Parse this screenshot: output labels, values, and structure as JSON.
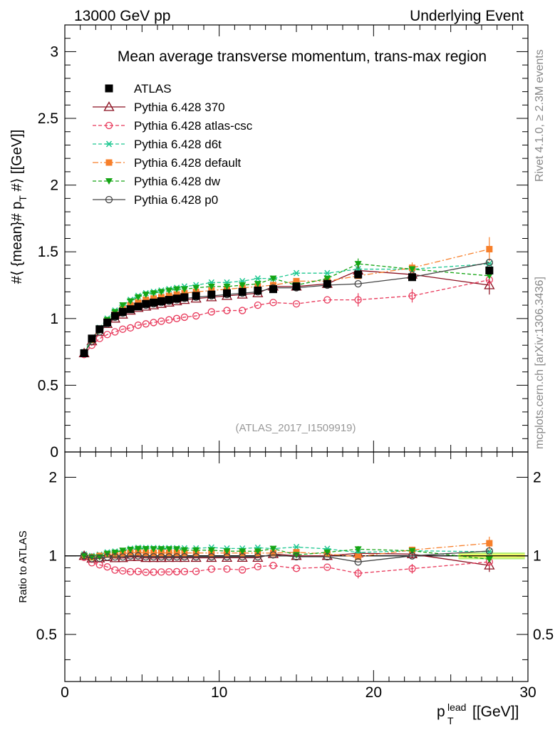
{
  "header": {
    "left": "13000 GeV pp",
    "right": "Underlying Event",
    "side_top": "Rivet 4.1.0, ≥ 2.3M events",
    "side_bottom": "mcplots.cern.ch [arXiv:1306.3436]",
    "analysis_id": "(ATLAS_2017_I1509919)"
  },
  "colors": {
    "ATLAS": "#000000",
    "p370": "#8b1020",
    "atlascsc": "#e8385a",
    "d6t": "#1ec891",
    "default": "#f77f2a",
    "dw": "#14a514",
    "p0": "#444444",
    "band_inner": "#ffff66",
    "band_outer": "#b8f07a"
  },
  "chart_data": [
    {
      "type": "line",
      "panel": "main",
      "title": "Mean average transverse momentum, trans-max region",
      "xlabel": "p_T^lead [[GeV]]",
      "ylabel": "#langle {mean}# p_T #rangle [[GeV]]",
      "ylabel_parts": {
        "pre": "#",
        "mid": "{mean}# p",
        "sub": "T",
        "post": "#",
        "tail": "[[GeV]]"
      },
      "xlim": [
        0,
        30
      ],
      "ylim": [
        0,
        3.2
      ],
      "yticks": [
        0,
        0.5,
        1,
        1.5,
        2,
        2.5,
        3
      ],
      "ytick_labels": [
        "0",
        "0.5",
        "1",
        "1.5",
        "2",
        "2.5",
        "3"
      ],
      "x": [
        1.25,
        1.75,
        2.25,
        2.75,
        3.25,
        3.75,
        4.25,
        4.75,
        5.25,
        5.75,
        6.25,
        6.75,
        7.25,
        7.75,
        8.5,
        9.5,
        10.5,
        11.5,
        12.5,
        13.5,
        15,
        17,
        19,
        22.5,
        27.5
      ],
      "series": [
        {
          "name": "ATLAS",
          "key": "ATLAS",
          "marker": "square",
          "line": "none",
          "values": [
            0.74,
            0.85,
            0.92,
            0.97,
            1.02,
            1.05,
            1.07,
            1.09,
            1.11,
            1.12,
            1.13,
            1.14,
            1.15,
            1.16,
            1.17,
            1.18,
            1.19,
            1.2,
            1.21,
            1.22,
            1.24,
            1.26,
            1.33,
            1.31,
            1.36
          ]
        },
        {
          "name": "Pythia 6.428 370",
          "key": "p370",
          "marker": "triangle-open",
          "line": "solid",
          "values": [
            0.74,
            0.83,
            0.9,
            0.96,
            1.0,
            1.03,
            1.06,
            1.08,
            1.09,
            1.1,
            1.11,
            1.12,
            1.13,
            1.14,
            1.15,
            1.16,
            1.17,
            1.18,
            1.19,
            1.24,
            1.24,
            1.26,
            1.36,
            1.33,
            1.25
          ]
        },
        {
          "name": "Pythia 6.428 atlas-csc",
          "key": "atlascsc",
          "marker": "circle-open",
          "line": "dashed",
          "values": [
            0.73,
            0.8,
            0.85,
            0.88,
            0.9,
            0.92,
            0.93,
            0.95,
            0.96,
            0.97,
            0.98,
            0.99,
            1.0,
            1.01,
            1.02,
            1.05,
            1.06,
            1.06,
            1.1,
            1.12,
            1.11,
            1.14,
            1.14,
            1.17,
            1.29
          ]
        },
        {
          "name": "Pythia 6.428 d6t",
          "key": "d6t",
          "marker": "star",
          "line": "dashed",
          "values": [
            0.75,
            0.85,
            0.93,
            1.0,
            1.06,
            1.1,
            1.14,
            1.17,
            1.19,
            1.2,
            1.21,
            1.22,
            1.23,
            1.24,
            1.25,
            1.27,
            1.27,
            1.28,
            1.3,
            1.3,
            1.34,
            1.34,
            1.37,
            1.37,
            1.41
          ]
        },
        {
          "name": "Pythia 6.428 default",
          "key": "default",
          "marker": "square-small",
          "line": "dashdot",
          "values": [
            0.74,
            0.84,
            0.92,
            0.98,
            1.03,
            1.07,
            1.1,
            1.12,
            1.14,
            1.15,
            1.16,
            1.17,
            1.18,
            1.19,
            1.2,
            1.21,
            1.22,
            1.23,
            1.24,
            1.25,
            1.28,
            1.28,
            1.32,
            1.38,
            1.52
          ]
        },
        {
          "name": "Pythia 6.428 dw",
          "key": "dw",
          "marker": "triangle-down",
          "line": "dashed",
          "values": [
            0.74,
            0.84,
            0.91,
            0.99,
            1.05,
            1.1,
            1.13,
            1.16,
            1.18,
            1.19,
            1.2,
            1.21,
            1.22,
            1.22,
            1.23,
            1.24,
            1.24,
            1.25,
            1.26,
            1.3,
            1.25,
            1.3,
            1.41,
            1.37,
            1.32
          ]
        },
        {
          "name": "Pythia 6.428 p0",
          "key": "p0",
          "marker": "circle-open",
          "line": "solid",
          "values": [
            0.74,
            0.83,
            0.9,
            0.96,
            1.01,
            1.04,
            1.07,
            1.09,
            1.1,
            1.11,
            1.12,
            1.13,
            1.14,
            1.15,
            1.16,
            1.17,
            1.18,
            1.19,
            1.2,
            1.23,
            1.23,
            1.25,
            1.26,
            1.31,
            1.42
          ]
        }
      ],
      "errors": {
        "default": [
          [
            27.5,
            0.09
          ],
          [
            22.5,
            0.04
          ]
        ],
        "p370": [
          [
            27.5,
            0.07
          ],
          [
            22.5,
            0.04
          ],
          [
            19,
            0.04
          ]
        ],
        "atlascsc": [
          [
            27.5,
            0.05
          ],
          [
            22.5,
            0.05
          ],
          [
            19,
            0.05
          ]
        ],
        "dw": [
          [
            19,
            0.04
          ]
        ]
      },
      "legend": "top-left"
    },
    {
      "type": "line",
      "panel": "ratio",
      "ylabel": "Ratio to ATLAS",
      "xlabel": "p_T^lead [[GeV]]",
      "xlim": [
        0,
        30
      ],
      "ylim": [
        0.33,
        2.5
      ],
      "yscale": "log",
      "yticks": [
        0.5,
        1,
        2
      ],
      "ytick_labels": [
        "0.5",
        "1",
        "2"
      ],
      "xticks": [
        0,
        10,
        20,
        30
      ],
      "xtick_labels": [
        "0",
        "10",
        "20",
        "30"
      ],
      "reference": 1
    }
  ],
  "axis_labels": {
    "x_main": "p",
    "x_sub": "T",
    "x_sup": "lead",
    "x_unit": "[[GeV]]"
  }
}
